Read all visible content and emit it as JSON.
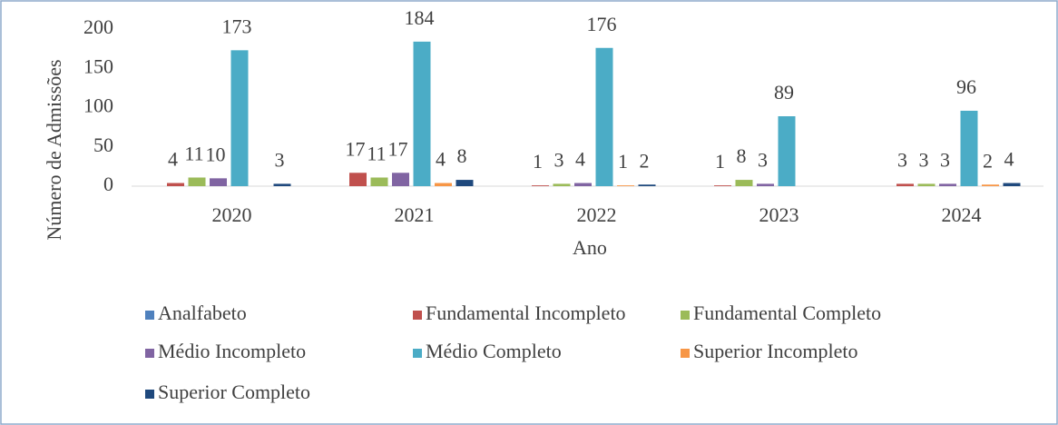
{
  "chart_data": {
    "type": "bar",
    "ylabel": "Número de Admissões",
    "xlabel": "Ano",
    "categories": [
      "2020",
      "2021",
      "2022",
      "2023",
      "2024"
    ],
    "series": [
      {
        "name": "Analfabeto",
        "color": "#4f81bd",
        "values": [
          null,
          null,
          null,
          null,
          null
        ]
      },
      {
        "name": "Fundamental Incompleto",
        "color": "#c0504d",
        "values": [
          4,
          17,
          1,
          1,
          3
        ]
      },
      {
        "name": "Fundamental Completo",
        "color": "#9bbb59",
        "values": [
          11,
          11,
          3,
          8,
          3
        ]
      },
      {
        "name": "Médio Incompleto",
        "color": "#8064a2",
        "values": [
          10,
          17,
          4,
          3,
          3
        ]
      },
      {
        "name": "Médio Completo",
        "color": "#4bacc6",
        "values": [
          173,
          184,
          176,
          89,
          96
        ]
      },
      {
        "name": "Superior Incompleto",
        "color": "#f79646",
        "values": [
          null,
          4,
          1,
          null,
          2
        ]
      },
      {
        "name": "Superior Completo",
        "color": "#1f497d",
        "values": [
          3,
          8,
          2,
          null,
          4
        ]
      }
    ],
    "ylim": [
      0,
      200
    ],
    "yticks": [
      0,
      50,
      100,
      150,
      200
    ],
    "grid": false,
    "legend": "bottom"
  }
}
